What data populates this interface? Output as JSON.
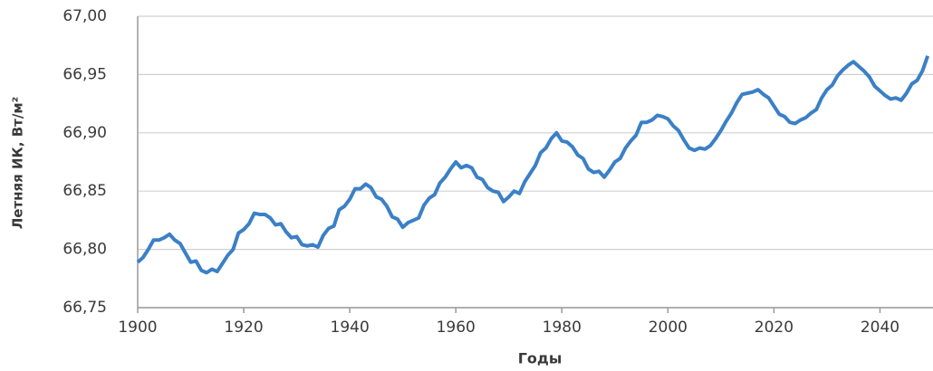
{
  "chart_data": {
    "type": "line",
    "xlabel": "Годы",
    "ylabel": "Летняя ИК, Вт/м²",
    "xlim": [
      1900,
      2050
    ],
    "xticks": [
      1900,
      1920,
      1940,
      1960,
      1980,
      2000,
      2020,
      2040
    ],
    "ylim": [
      66.75,
      67.0
    ],
    "yticks": [
      {
        "value": 66.75,
        "label": "66,75"
      },
      {
        "value": 66.8,
        "label": "66,80"
      },
      {
        "value": 66.85,
        "label": "66,85"
      },
      {
        "value": 66.9,
        "label": "66,90"
      },
      {
        "value": 66.95,
        "label": "66,95"
      },
      {
        "value": 67.0,
        "label": "67,00"
      }
    ],
    "grid": true,
    "x": [
      1900,
      1901,
      1902,
      1903,
      1904,
      1905,
      1906,
      1907,
      1908,
      1909,
      1910,
      1911,
      1912,
      1913,
      1914,
      1915,
      1916,
      1917,
      1918,
      1919,
      1920,
      1921,
      1922,
      1923,
      1924,
      1925,
      1926,
      1927,
      1928,
      1929,
      1930,
      1931,
      1932,
      1933,
      1934,
      1935,
      1936,
      1937,
      1938,
      1939,
      1940,
      1941,
      1942,
      1943,
      1944,
      1945,
      1946,
      1947,
      1948,
      1949,
      1950,
      1951,
      1952,
      1953,
      1954,
      1955,
      1956,
      1957,
      1958,
      1959,
      1960,
      1961,
      1962,
      1963,
      1964,
      1965,
      1966,
      1967,
      1968,
      1969,
      1970,
      1971,
      1972,
      1973,
      1974,
      1975,
      1976,
      1977,
      1978,
      1979,
      1980,
      1981,
      1982,
      1983,
      1984,
      1985,
      1986,
      1987,
      1988,
      1989,
      1990,
      1991,
      1992,
      1993,
      1994,
      1995,
      1996,
      1997,
      1998,
      1999,
      2000,
      2001,
      2002,
      2003,
      2004,
      2005,
      2006,
      2007,
      2008,
      2009,
      2010,
      2011,
      2012,
      2013,
      2014,
      2015,
      2016,
      2017,
      2018,
      2019,
      2020,
      2021,
      2022,
      2023,
      2024,
      2025,
      2026,
      2027,
      2028,
      2029,
      2030,
      2031,
      2032,
      2033,
      2034,
      2035,
      2036,
      2037,
      2038,
      2039,
      2040,
      2041,
      2042,
      2043,
      2044,
      2045,
      2046,
      2047,
      2048,
      2049
    ],
    "series": [
      {
        "color": "#3b80c6",
        "values": [
          66.789,
          66.793,
          66.8,
          66.808,
          66.808,
          66.81,
          66.813,
          66.808,
          66.805,
          66.797,
          66.789,
          66.79,
          66.782,
          66.78,
          66.783,
          66.781,
          66.788,
          66.795,
          66.8,
          66.814,
          66.817,
          66.822,
          66.831,
          66.83,
          66.83,
          66.827,
          66.821,
          66.822,
          66.815,
          66.81,
          66.811,
          66.804,
          66.803,
          66.804,
          66.802,
          66.812,
          66.818,
          66.82,
          66.834,
          66.837,
          66.843,
          66.852,
          66.852,
          66.856,
          66.853,
          66.845,
          66.843,
          66.837,
          66.828,
          66.826,
          66.819,
          66.823,
          66.825,
          66.827,
          66.838,
          66.844,
          66.847,
          66.857,
          66.862,
          66.869,
          66.875,
          66.87,
          66.872,
          66.87,
          66.862,
          66.86,
          66.853,
          66.85,
          66.849,
          66.841,
          66.845,
          66.85,
          66.848,
          66.858,
          66.865,
          66.872,
          66.883,
          66.887,
          66.895,
          66.9,
          66.893,
          66.892,
          66.888,
          66.881,
          66.878,
          66.869,
          66.866,
          66.867,
          66.862,
          66.868,
          66.875,
          66.878,
          66.887,
          66.893,
          66.898,
          66.909,
          66.909,
          66.911,
          66.915,
          66.914,
          66.912,
          66.906,
          66.902,
          66.894,
          66.887,
          66.885,
          66.887,
          66.886,
          66.889,
          66.895,
          66.902,
          66.91,
          66.917,
          66.926,
          66.933,
          66.934,
          66.935,
          66.937,
          66.933,
          66.93,
          66.923,
          66.916,
          66.914,
          66.909,
          66.908,
          66.911,
          66.913,
          66.917,
          66.92,
          66.93,
          66.937,
          66.941,
          66.949,
          66.954,
          66.958,
          66.961,
          66.957,
          66.953,
          66.948,
          66.94,
          66.936,
          66.932,
          66.929,
          66.93,
          66.928,
          66.934,
          66.942,
          66.945,
          66.953,
          66.966
        ]
      }
    ]
  }
}
